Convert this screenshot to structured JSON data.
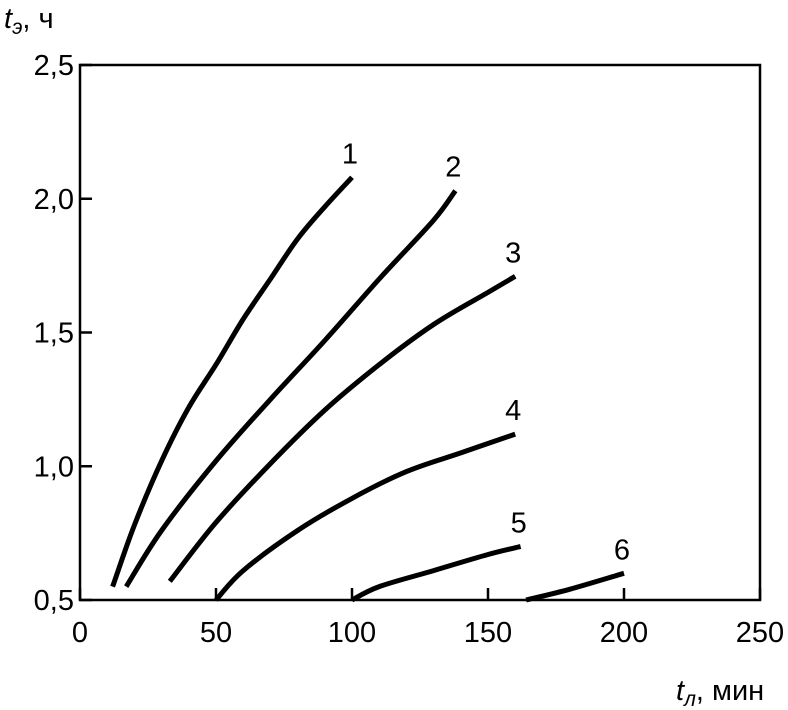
{
  "chart_data": {
    "type": "line",
    "title": "",
    "xlabel": {
      "main": "t",
      "sub": "л",
      "unit": ", мин"
    },
    "ylabel": {
      "main": "t",
      "sub": "э",
      "unit": ", ч"
    },
    "xlim": [
      0,
      250
    ],
    "ylim": [
      0.5,
      2.5
    ],
    "x_ticks": [
      0,
      50,
      100,
      150,
      200,
      250
    ],
    "x_tick_labels": [
      "0",
      "50",
      "100",
      "150",
      "200",
      "250"
    ],
    "y_ticks": [
      0.5,
      1.0,
      1.5,
      2.0,
      2.5
    ],
    "y_tick_labels": [
      "0,5",
      "1,0",
      "1,5",
      "2,0",
      "2,5"
    ],
    "grid": false,
    "legend": "none",
    "series": [
      {
        "label": "1",
        "x": [
          12,
          20,
          30,
          40,
          50,
          60,
          70,
          80,
          90,
          100
        ],
        "y": [
          0.55,
          0.78,
          1.02,
          1.22,
          1.38,
          1.55,
          1.7,
          1.85,
          1.97,
          2.08
        ]
      },
      {
        "label": "2",
        "x": [
          17,
          30,
          50,
          70,
          90,
          110,
          130,
          138
        ],
        "y": [
          0.55,
          0.76,
          1.02,
          1.25,
          1.47,
          1.7,
          1.92,
          2.03
        ]
      },
      {
        "label": "3",
        "x": [
          33,
          50,
          70,
          90,
          110,
          130,
          150,
          160
        ],
        "y": [
          0.57,
          0.79,
          1.01,
          1.21,
          1.38,
          1.53,
          1.65,
          1.71
        ]
      },
      {
        "label": "4",
        "x": [
          50,
          60,
          80,
          100,
          120,
          140,
          160
        ],
        "y": [
          0.5,
          0.61,
          0.76,
          0.88,
          0.98,
          1.05,
          1.12
        ]
      },
      {
        "label": "5",
        "x": [
          100,
          110,
          130,
          150,
          162
        ],
        "y": [
          0.5,
          0.55,
          0.61,
          0.67,
          0.7
        ]
      },
      {
        "label": "6",
        "x": [
          164,
          180,
          200
        ],
        "y": [
          0.5,
          0.54,
          0.6
        ]
      }
    ]
  }
}
